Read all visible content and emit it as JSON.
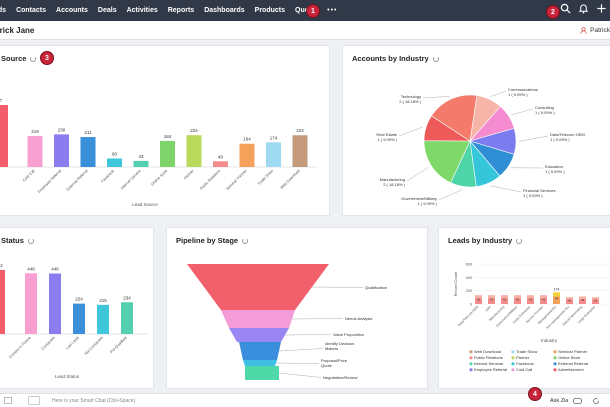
{
  "nav": {
    "items": [
      "ads",
      "Contacts",
      "Accounts",
      "Deals",
      "Activities",
      "Reports",
      "Dashboards",
      "Products",
      "Quotes"
    ],
    "more": "•••"
  },
  "badges": [
    "1",
    "2",
    "3",
    "4"
  ],
  "header": {
    "user_name": "trick Jane",
    "owner_label": "Patrick"
  },
  "panels": {
    "lead_source": "Source",
    "accounts_by_industry": "Accounts by Industry",
    "lead_status": "Status",
    "pipeline": "Pipeline by Stage",
    "leads_by_industry": "Leads by Industry"
  },
  "chart_data": [
    {
      "type": "bar",
      "title": "Source",
      "xlabel": "Lead Source",
      "categories": [
        "",
        "Cold Call",
        "Employee Referral",
        "External Referral",
        "Facebook",
        "Internet Service",
        "Online Store",
        "Partner",
        "Public Relations",
        "Seminar Partner",
        "Trade Show",
        "Web Download"
      ],
      "values": [
        437,
        219,
        230,
        211,
        60,
        43,
        184,
        224,
        40,
        164,
        174,
        224
      ],
      "colors": [
        "#f25c6b",
        "#f79fd1",
        "#8b7cf0",
        "#3a8fd9",
        "#3fc7d9",
        "#54cfb0",
        "#7ed46a",
        "#b9d95c",
        "#f58b8b",
        "#f4a15c",
        "#9fd9f2",
        "#c49a7c"
      ]
    },
    {
      "type": "pie",
      "title": "Accounts by Industry",
      "slices": [
        {
          "label": "Communications",
          "value": 1,
          "text": "1 ( 9.09% )",
          "color": "#f6b5a8"
        },
        {
          "label": "Consulting",
          "value": 1,
          "text": "1 ( 9.09% )",
          "color": "#f58bd0"
        },
        {
          "label": "Data/Telecom OEM",
          "value": 1,
          "text": "1 ( 9.09% )",
          "color": "#7b7cf0"
        },
        {
          "label": "Education",
          "value": 1,
          "text": "1 ( 9.09% )",
          "color": "#2f8ed4"
        },
        {
          "label": "Financial Services",
          "value": 1,
          "text": "1 ( 9.09% )",
          "color": "#35c6da"
        },
        {
          "label": "Government/Military",
          "value": 1,
          "text": "1 ( 9.09% )",
          "color": "#4fd4a8"
        },
        {
          "label": "Manufacturing",
          "value": 2,
          "text": "2 ( 18.18% )",
          "color": "#7fd86a"
        },
        {
          "label": "Real Estate",
          "value": 1,
          "text": "1 ( 9.09% )",
          "color": "#ee5a5a"
        },
        {
          "label": "Technology",
          "value": 2,
          "text": "2 ( 18.18% )",
          "color": "#f47b6b"
        }
      ]
    },
    {
      "type": "bar",
      "title": "Status",
      "xlabel": "Lead Status",
      "categories": [
        "",
        "Contact in Future",
        "Contacted",
        "Lost Lead",
        "Not Contacted",
        "Pre-Qualified"
      ],
      "values": [
        472,
        448,
        446,
        224,
        215,
        234
      ],
      "colors": [
        "#f25c6b",
        "#f79fd1",
        "#8b7cf0",
        "#3a8fd9",
        "#3fc7d9",
        "#54cfb0"
      ]
    },
    {
      "type": "funnel",
      "title": "Pipeline by Stage",
      "stages": [
        "Qualification",
        "Needs Analysis",
        "Value Proposition",
        "Identify Decision Makers",
        "Proposal/Price Quote",
        "Negotiation/Review"
      ],
      "colors": [
        "#f2606c",
        "#f59bd7",
        "#9a86f2",
        "#3a8fdd",
        "#3fbfe6",
        "#4fd9a8"
      ]
    },
    {
      "type": "bar",
      "title": "Leads by Industry",
      "ylabel": "Record Count",
      "xlabel": "Industry",
      "ylim": [
        0,
        600
      ],
      "yticks": [
        "600",
        "400",
        "200",
        "0"
      ],
      "categories": [
        "Data/Telecom OEM",
        "ERP",
        "Manufacturing",
        "Government/Military",
        "Large Enterprise",
        "Service Provider",
        "Management/ISV",
        "Non-management ISV",
        "Optical Networking",
        "Large Enterprise"
      ],
      "values": [
        130,
        130,
        130,
        130,
        130,
        130,
        174,
        100,
        110,
        100
      ],
      "labels": [
        "174",
        "84",
        "42"
      ],
      "legend": [
        {
          "name": "Web Download",
          "color": "#c49a7c"
        },
        {
          "name": "Trade Show",
          "color": "#9fd9f2"
        },
        {
          "name": "Seminar Partner",
          "color": "#f4a15c"
        },
        {
          "name": "Public Relations",
          "color": "#f58b8b"
        },
        {
          "name": "Partner",
          "color": "#b9d95c"
        },
        {
          "name": "Online Store",
          "color": "#7ed46a"
        },
        {
          "name": "Internal Seminar",
          "color": "#54cfb0"
        },
        {
          "name": "Facebook",
          "color": "#3fc7d9"
        },
        {
          "name": "External Referral",
          "color": "#3a8fd9"
        },
        {
          "name": "Employee Referral",
          "color": "#8b7cf0"
        },
        {
          "name": "Cold Call",
          "color": "#f79fd1"
        },
        {
          "name": "Advertisement",
          "color": "#f25c6b"
        }
      ]
    }
  ],
  "bottom": {
    "search_placeholder": "Here is your Smart Chat (Ctrl+Space)",
    "ask_zia": "Ask Zia"
  }
}
